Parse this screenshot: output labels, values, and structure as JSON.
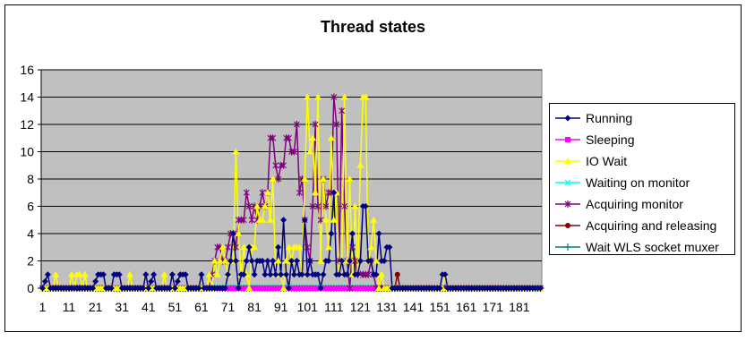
{
  "chart_data": {
    "type": "line",
    "title": "Thread states",
    "xlabel": "",
    "ylabel": "",
    "ylim": [
      0,
      16
    ],
    "yticks": [
      0,
      2,
      4,
      6,
      8,
      10,
      12,
      14,
      16
    ],
    "x_tick_labels": [
      "1",
      "11",
      "21",
      "31",
      "41",
      "51",
      "61",
      "71",
      "81",
      "91",
      "101",
      "111",
      "121",
      "131",
      "141",
      "151",
      "161",
      "171",
      "181"
    ],
    "num_points": 189,
    "grid": "horizontal major gridlines",
    "plot_background": "#c0c0c0",
    "legend_position": "right",
    "series": [
      {
        "name": "Running",
        "color": "#000080",
        "marker": "diamond",
        "points": [
          [
            1,
            0
          ],
          [
            3,
            1
          ],
          [
            4,
            0
          ],
          [
            20,
            0
          ],
          [
            22,
            1
          ],
          [
            24,
            1
          ],
          [
            25,
            0
          ],
          [
            27,
            0
          ],
          [
            28,
            1
          ],
          [
            30,
            1
          ],
          [
            31,
            0
          ],
          [
            39,
            0
          ],
          [
            40,
            1
          ],
          [
            41,
            0
          ],
          [
            43,
            1
          ],
          [
            44,
            0
          ],
          [
            49,
            0
          ],
          [
            50,
            1
          ],
          [
            51,
            0
          ],
          [
            53,
            1
          ],
          [
            54,
            1
          ],
          [
            55,
            1
          ],
          [
            56,
            0
          ],
          [
            60,
            0
          ],
          [
            61,
            1
          ],
          [
            62,
            0
          ],
          [
            70,
            0
          ],
          [
            71,
            1
          ],
          [
            72,
            2
          ],
          [
            73,
            4
          ],
          [
            74,
            2
          ],
          [
            75,
            0
          ],
          [
            76,
            1
          ],
          [
            77,
            1
          ],
          [
            78,
            2
          ],
          [
            79,
            3
          ],
          [
            80,
            2
          ],
          [
            81,
            1
          ],
          [
            82,
            2
          ],
          [
            83,
            2
          ],
          [
            84,
            2
          ],
          [
            85,
            1
          ],
          [
            86,
            2
          ],
          [
            87,
            1
          ],
          [
            88,
            2
          ],
          [
            89,
            1
          ],
          [
            90,
            3
          ],
          [
            91,
            1
          ],
          [
            92,
            5
          ],
          [
            93,
            1
          ],
          [
            94,
            0
          ],
          [
            95,
            2
          ],
          [
            96,
            1
          ],
          [
            97,
            2
          ],
          [
            98,
            1
          ],
          [
            99,
            1
          ],
          [
            100,
            5
          ],
          [
            101,
            1
          ],
          [
            102,
            2
          ],
          [
            103,
            1
          ],
          [
            104,
            1
          ],
          [
            105,
            1
          ],
          [
            106,
            0
          ],
          [
            107,
            1
          ],
          [
            108,
            2
          ],
          [
            109,
            2
          ],
          [
            110,
            4
          ],
          [
            111,
            7
          ],
          [
            112,
            1
          ],
          [
            113,
            1
          ],
          [
            114,
            2
          ],
          [
            115,
            1
          ],
          [
            116,
            1
          ],
          [
            117,
            2
          ],
          [
            118,
            4
          ],
          [
            119,
            1
          ],
          [
            120,
            1
          ],
          [
            121,
            2
          ],
          [
            122,
            6
          ],
          [
            123,
            6
          ],
          [
            124,
            2
          ],
          [
            125,
            2
          ],
          [
            126,
            1
          ],
          [
            127,
            1
          ],
          [
            128,
            4
          ],
          [
            129,
            2
          ],
          [
            130,
            2
          ],
          [
            131,
            3
          ],
          [
            132,
            3
          ],
          [
            133,
            0
          ],
          [
            151,
            0
          ],
          [
            152,
            1
          ],
          [
            153,
            1
          ],
          [
            154,
            0
          ],
          [
            189,
            0
          ]
        ]
      },
      {
        "name": "Sleeping",
        "color": "#ff00ff",
        "marker": "square",
        "points": [
          [
            1,
            0
          ],
          [
            189,
            0
          ]
        ]
      },
      {
        "name": "IO Wait",
        "color": "#ffff00",
        "marker": "triangle",
        "points": [
          [
            1,
            0
          ],
          [
            5,
            0
          ],
          [
            6,
            1
          ],
          [
            7,
            0
          ],
          [
            11,
            0
          ],
          [
            12,
            1
          ],
          [
            13,
            0
          ],
          [
            14,
            1
          ],
          [
            15,
            1
          ],
          [
            16,
            0
          ],
          [
            17,
            1
          ],
          [
            18,
            0
          ],
          [
            33,
            0
          ],
          [
            34,
            1
          ],
          [
            35,
            0
          ],
          [
            46,
            0
          ],
          [
            47,
            1
          ],
          [
            48,
            0
          ],
          [
            63,
            0
          ],
          [
            64,
            1
          ],
          [
            65,
            0
          ],
          [
            66,
            2
          ],
          [
            67,
            1
          ],
          [
            68,
            2
          ],
          [
            69,
            3
          ],
          [
            70,
            2
          ],
          [
            71,
            1
          ],
          [
            72,
            2
          ],
          [
            73,
            2
          ],
          [
            74,
            10
          ],
          [
            75,
            4
          ],
          [
            76,
            1
          ],
          [
            77,
            3
          ],
          [
            78,
            1
          ],
          [
            79,
            0
          ],
          [
            80,
            3
          ],
          [
            81,
            3
          ],
          [
            82,
            6
          ],
          [
            83,
            5
          ],
          [
            84,
            5
          ],
          [
            85,
            6
          ],
          [
            86,
            7
          ],
          [
            87,
            5
          ],
          [
            88,
            8
          ],
          [
            89,
            1
          ],
          [
            90,
            2
          ],
          [
            91,
            1
          ],
          [
            92,
            0
          ],
          [
            93,
            2
          ],
          [
            94,
            3
          ],
          [
            95,
            2
          ],
          [
            96,
            3
          ],
          [
            97,
            3
          ],
          [
            98,
            3
          ],
          [
            99,
            1
          ],
          [
            100,
            8
          ],
          [
            101,
            14
          ],
          [
            102,
            10
          ],
          [
            103,
            11
          ],
          [
            104,
            7
          ],
          [
            105,
            14
          ],
          [
            106,
            2
          ],
          [
            107,
            8
          ],
          [
            108,
            5
          ],
          [
            109,
            3
          ],
          [
            110,
            11
          ],
          [
            111,
            5
          ],
          [
            112,
            7
          ],
          [
            113,
            1
          ],
          [
            114,
            2
          ],
          [
            115,
            14
          ],
          [
            116,
            2
          ],
          [
            117,
            8
          ],
          [
            118,
            1
          ],
          [
            119,
            6
          ],
          [
            120,
            1
          ],
          [
            121,
            9
          ],
          [
            122,
            14
          ],
          [
            123,
            14
          ],
          [
            124,
            2
          ],
          [
            125,
            3
          ],
          [
            126,
            5
          ],
          [
            127,
            2
          ],
          [
            128,
            0
          ],
          [
            129,
            1
          ],
          [
            130,
            0
          ],
          [
            152,
            0
          ],
          [
            153,
            1
          ],
          [
            154,
            0
          ],
          [
            189,
            0
          ]
        ]
      },
      {
        "name": "Waiting on monitor",
        "color": "#00ffff",
        "marker": "x",
        "points": [
          [
            1,
            0
          ],
          [
            189,
            0
          ]
        ]
      },
      {
        "name": "Acquiring monitor",
        "color": "#800080",
        "marker": "star",
        "points": [
          [
            1,
            0
          ],
          [
            64,
            0
          ],
          [
            65,
            1
          ],
          [
            66,
            2
          ],
          [
            67,
            3
          ],
          [
            68,
            3
          ],
          [
            69,
            2
          ],
          [
            70,
            2
          ],
          [
            71,
            3
          ],
          [
            72,
            4
          ],
          [
            73,
            4
          ],
          [
            74,
            3
          ],
          [
            75,
            5
          ],
          [
            76,
            5
          ],
          [
            77,
            5
          ],
          [
            78,
            7
          ],
          [
            79,
            6
          ],
          [
            80,
            5
          ],
          [
            81,
            6
          ],
          [
            82,
            5
          ],
          [
            83,
            6
          ],
          [
            84,
            7
          ],
          [
            85,
            6
          ],
          [
            86,
            7
          ],
          [
            87,
            11
          ],
          [
            88,
            11
          ],
          [
            89,
            9
          ],
          [
            90,
            8
          ],
          [
            91,
            9
          ],
          [
            92,
            9
          ],
          [
            93,
            11
          ],
          [
            94,
            11
          ],
          [
            95,
            10
          ],
          [
            96,
            10
          ],
          [
            97,
            12
          ],
          [
            98,
            7
          ],
          [
            99,
            8
          ],
          [
            100,
            5
          ],
          [
            101,
            3
          ],
          [
            102,
            2
          ],
          [
            103,
            6
          ],
          [
            104,
            12
          ],
          [
            105,
            6
          ],
          [
            106,
            5
          ],
          [
            107,
            8
          ],
          [
            108,
            6
          ],
          [
            109,
            7
          ],
          [
            110,
            7
          ],
          [
            111,
            14
          ],
          [
            112,
            12
          ],
          [
            113,
            2
          ],
          [
            114,
            13
          ],
          [
            115,
            6
          ],
          [
            116,
            2
          ],
          [
            117,
            0
          ],
          [
            118,
            3
          ],
          [
            119,
            2
          ],
          [
            120,
            1
          ],
          [
            121,
            1
          ],
          [
            122,
            1
          ],
          [
            123,
            1
          ],
          [
            124,
            1
          ],
          [
            125,
            2
          ],
          [
            126,
            1
          ],
          [
            127,
            0
          ],
          [
            189,
            0
          ]
        ]
      },
      {
        "name": "Acquiring and releasing",
        "color": "#800000",
        "marker": "circle",
        "points": [
          [
            1,
            0
          ],
          [
            134,
            0
          ],
          [
            135,
            1
          ],
          [
            136,
            0
          ],
          [
            189,
            0
          ]
        ]
      },
      {
        "name": "Wait WLS socket muxer",
        "color": "#008080",
        "marker": "plus",
        "points": [
          [
            1,
            0
          ],
          [
            189,
            0
          ]
        ]
      }
    ]
  }
}
